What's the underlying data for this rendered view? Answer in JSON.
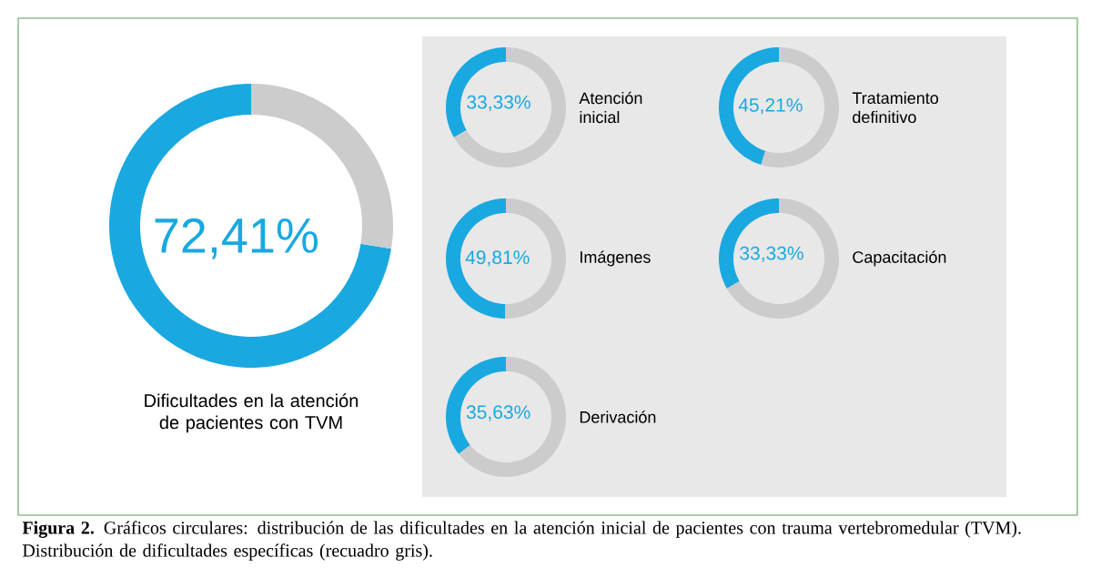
{
  "chart_data": [
    {
      "type": "donut",
      "title": "Dificultades en la atención de pacientes con TVM",
      "categories": [
        null,
        null
      ],
      "values": [
        72.41,
        27.59
      ],
      "colors": [
        "#1aa8e0",
        "#cccccc"
      ],
      "value_labels": [
        "72,41%",
        null
      ],
      "annotations": [
        "**Figura 2.** Gráficos circulares: distribución de las dificultades en la atención inicial de pacientes con trauma vertebromedular (TVM). Distribución de dificultades específicas (recuadro gris)."
      ]
    },
    {
      "type": "donut",
      "title": "Atención inicial",
      "categories": [
        null,
        null
      ],
      "values": [
        33.33,
        66.67
      ],
      "colors": [
        "#1aa8e0",
        "#cccccc"
      ],
      "value_labels": [
        "33,33%",
        null
      ]
    },
    {
      "type": "donut",
      "title": "Tratamiento definitivo",
      "categories": [
        null,
        null
      ],
      "values": [
        45.21,
        54.79
      ],
      "colors": [
        "#1aa8e0",
        "#cccccc"
      ],
      "value_labels": [
        "45,21%",
        null
      ]
    },
    {
      "type": "donut",
      "title": "Imágenes",
      "categories": [
        null,
        null
      ],
      "values": [
        49.81,
        50.19
      ],
      "colors": [
        "#1aa8e0",
        "#cccccc"
      ],
      "value_labels": [
        "49,81%",
        null
      ]
    },
    {
      "type": "donut",
      "title": "Capacitación",
      "categories": [
        null,
        null
      ],
      "values": [
        33.33,
        66.67
      ],
      "colors": [
        "#1aa8e0",
        "#cccccc"
      ],
      "value_labels": [
        "33,33%",
        null
      ]
    },
    {
      "type": "donut",
      "title": "Derivación",
      "categories": [
        null,
        null
      ],
      "values": [
        35.63,
        64.37
      ],
      "colors": [
        "#1aa8e0",
        "#cccccc"
      ],
      "value_labels": [
        "35,63%",
        null
      ]
    }
  ]
}
